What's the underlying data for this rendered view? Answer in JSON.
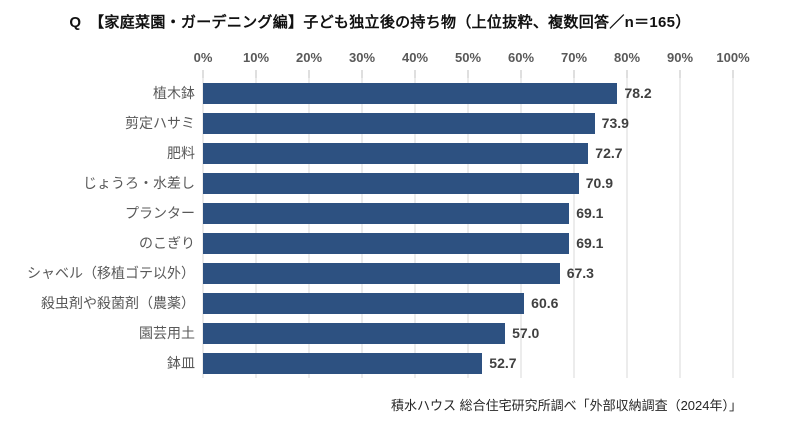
{
  "title": "Q　【家庭菜園・ガーデニング編】子ども独立後の持ち物（上位抜粋、複数回答／n＝165）",
  "source": "積水ハウス 総合住宅研究所調べ「外部収納調査（2024年）」",
  "chart_data": {
    "type": "bar",
    "orientation": "horizontal",
    "title": "Q　【家庭菜園・ガーデニング編】子ども独立後の持ち物（上位抜粋、複数回答／n＝165）",
    "categories": [
      "植木鉢",
      "剪定ハサミ",
      "肥料",
      "じょうろ・水差し",
      "プランター",
      "のこぎり",
      "シャベル（移植ゴテ以外）",
      "殺虫剤や殺菌剤（農薬）",
      "園芸用土",
      "鉢皿"
    ],
    "values": [
      78.2,
      73.9,
      72.7,
      70.9,
      69.1,
      69.1,
      67.3,
      60.6,
      57.0,
      52.7
    ],
    "value_labels": [
      "78.2",
      "73.9",
      "72.7",
      "70.9",
      "69.1",
      "69.1",
      "67.3",
      "60.6",
      "57.0",
      "52.7"
    ],
    "xlabel": "",
    "ylabel": "",
    "xlim": [
      0,
      100
    ],
    "axis_position": "top",
    "x_ticks": [
      "0%",
      "10%",
      "20%",
      "30%",
      "40%",
      "50%",
      "60%",
      "70%",
      "80%",
      "90%",
      "100%"
    ],
    "grid": "vertical",
    "legend": "none",
    "colors": {
      "bar": "#2d5181",
      "gridline": "#d9d9d9",
      "tickmark": "#bfbfbf",
      "axis_text": "#595959",
      "category_text": "#595959",
      "value_text": "#404040",
      "title_text": "#111111"
    }
  }
}
